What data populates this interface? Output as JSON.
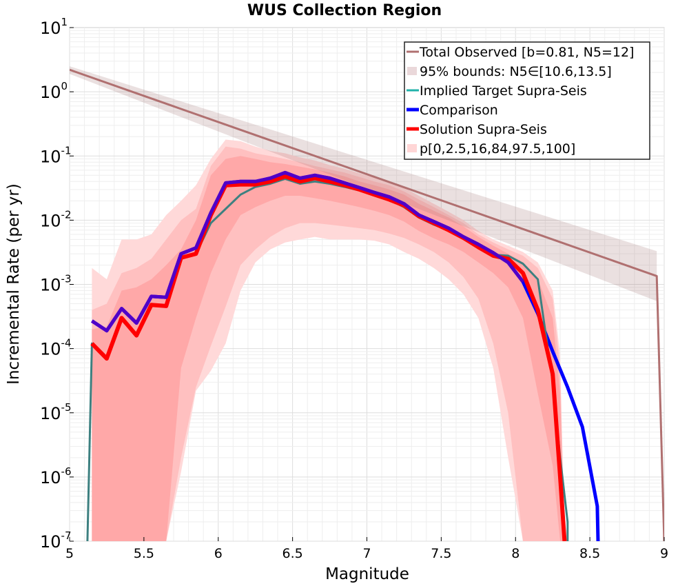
{
  "chart_data": {
    "type": "line",
    "title": "WUS Collection Region",
    "xlabel": "Magnitude",
    "ylabel": "Incremental Rate (per yr)",
    "xlim": [
      5,
      9
    ],
    "ylim": [
      1e-07,
      10
    ],
    "yscale": "log",
    "grid": true,
    "legend_position": "top-right",
    "x_ticks": [
      "5",
      "5.5",
      "6",
      "6.5",
      "7",
      "7.5",
      "8",
      "8.5",
      "9"
    ],
    "y_ticks": [
      {
        "base": "10",
        "exp": "-7"
      },
      {
        "base": "10",
        "exp": "-6"
      },
      {
        "base": "10",
        "exp": "-5"
      },
      {
        "base": "10",
        "exp": "-4"
      },
      {
        "base": "10",
        "exp": "-3"
      },
      {
        "base": "10",
        "exp": "-2"
      },
      {
        "base": "10",
        "exp": "-1"
      },
      {
        "base": "10",
        "exp": "0"
      },
      {
        "base": "10",
        "exp": "1"
      }
    ],
    "series": [
      {
        "name": "Total Observed [b=0.81, N5=12]",
        "color": "#b07070",
        "style": "line",
        "x": [
          5.0,
          8.95,
          8.95,
          9.0
        ],
        "y": [
          2.2,
          0.00135,
          0.00135,
          1e-07
        ]
      },
      {
        "name": "95% bounds: N5∈[10.6,13.5]",
        "color": "#a07070",
        "style": "band",
        "x": [
          5.0,
          8.95
        ],
        "lower": [
          1.9,
          0.00055
        ],
        "upper": [
          2.5,
          0.0033
        ]
      },
      {
        "name": "Implied Target Supra-Seis",
        "color": "#20b2aa",
        "style": "line",
        "x": [
          5.12,
          5.15,
          5.25,
          5.35,
          5.45,
          5.55,
          5.65,
          5.75,
          5.85,
          5.95,
          6.05,
          6.15,
          6.25,
          6.35,
          6.45,
          6.55,
          6.65,
          6.75,
          6.85,
          6.95,
          7.05,
          7.15,
          7.25,
          7.35,
          7.45,
          7.55,
          7.65,
          7.75,
          7.85,
          7.95,
          8.05,
          8.15,
          8.25,
          8.3,
          8.35,
          8.35
        ],
        "y": [
          1e-07,
          0.00012,
          7e-05,
          0.00028,
          0.00016,
          0.00047,
          0.00045,
          0.0025,
          0.003,
          0.009,
          0.015,
          0.025,
          0.033,
          0.037,
          0.044,
          0.037,
          0.04,
          0.037,
          0.033,
          0.029,
          0.025,
          0.021,
          0.016,
          0.011,
          0.0085,
          0.007,
          0.0052,
          0.0038,
          0.0029,
          0.0028,
          0.0021,
          0.0012,
          3e-05,
          2e-06,
          2e-07,
          1e-07
        ]
      },
      {
        "name": "Comparison",
        "color": "#0000ff",
        "style": "line",
        "x": [
          5.15,
          5.25,
          5.35,
          5.45,
          5.55,
          5.65,
          5.75,
          5.85,
          5.95,
          6.05,
          6.15,
          6.25,
          6.35,
          6.45,
          6.55,
          6.65,
          6.75,
          6.85,
          6.95,
          7.05,
          7.15,
          7.25,
          7.35,
          7.45,
          7.55,
          7.65,
          7.75,
          7.85,
          7.95,
          8.05,
          8.15,
          8.25,
          8.35,
          8.45,
          8.55,
          8.555
        ],
        "y": [
          0.00027,
          0.00019,
          0.00042,
          0.00025,
          0.00065,
          0.00063,
          0.003,
          0.0037,
          0.013,
          0.038,
          0.04,
          0.04,
          0.045,
          0.055,
          0.045,
          0.05,
          0.045,
          0.038,
          0.032,
          0.027,
          0.023,
          0.018,
          0.012,
          0.0095,
          0.0075,
          0.0055,
          0.0042,
          0.0031,
          0.0022,
          0.0011,
          0.00035,
          9e-05,
          2.5e-05,
          6e-06,
          3.5e-07,
          1e-07
        ]
      },
      {
        "name": "Solution Supra-Seis",
        "color": "#ff0000",
        "style": "line",
        "x": [
          5.15,
          5.25,
          5.35,
          5.45,
          5.55,
          5.65,
          5.75,
          5.85,
          5.95,
          6.05,
          6.15,
          6.25,
          6.35,
          6.45,
          6.55,
          6.65,
          6.75,
          6.85,
          6.95,
          7.05,
          7.15,
          7.25,
          7.35,
          7.45,
          7.55,
          7.65,
          7.75,
          7.85,
          7.95,
          8.05,
          8.15,
          8.25,
          8.3,
          8.33
        ],
        "y": [
          0.00012,
          7e-05,
          0.0003,
          0.00016,
          0.00048,
          0.00046,
          0.0026,
          0.003,
          0.012,
          0.035,
          0.036,
          0.036,
          0.04,
          0.048,
          0.04,
          0.045,
          0.04,
          0.035,
          0.03,
          0.025,
          0.021,
          0.017,
          0.0115,
          0.009,
          0.007,
          0.0053,
          0.0038,
          0.0028,
          0.0025,
          0.0015,
          0.0004,
          4e-05,
          1e-06,
          1e-07
        ]
      },
      {
        "name": "p[0,2.5,16,84,97.5,100]",
        "color": "#ff9999",
        "style": "percentile-bands",
        "x": [
          5.15,
          5.25,
          5.35,
          5.45,
          5.55,
          5.65,
          5.75,
          5.85,
          5.95,
          6.05,
          6.15,
          6.25,
          6.35,
          6.45,
          6.55,
          6.65,
          6.75,
          6.85,
          6.95,
          7.05,
          7.15,
          7.25,
          7.35,
          7.45,
          7.55,
          7.65,
          7.75,
          7.85,
          7.95,
          8.05,
          8.15,
          8.25,
          8.3,
          8.33
        ],
        "p0": [
          1e-07,
          1e-07,
          1e-07,
          1e-07,
          1e-07,
          1e-07,
          1.2e-06,
          2.2e-05,
          4.5e-05,
          0.00012,
          0.0008,
          0.0022,
          0.0035,
          0.0045,
          0.005,
          0.0055,
          0.005,
          0.005,
          0.005,
          0.0048,
          0.0042,
          0.0032,
          0.0025,
          0.0018,
          0.0012,
          0.0007,
          0.0003,
          5e-05,
          2e-06,
          1e-07,
          1e-07,
          1e-07,
          1e-07,
          1e-07
        ],
        "p2_5": [
          1e-07,
          1e-07,
          1e-07,
          1e-07,
          1e-07,
          1e-07,
          2e-06,
          2.5e-05,
          0.00011,
          0.00045,
          0.002,
          0.0035,
          0.0055,
          0.0075,
          0.009,
          0.009,
          0.0085,
          0.008,
          0.0075,
          0.007,
          0.0062,
          0.0053,
          0.0042,
          0.0032,
          0.0022,
          0.0013,
          0.0006,
          0.00012,
          1e-05,
          1e-07,
          1e-07,
          1e-07,
          1e-07,
          1e-07
        ],
        "p16": [
          1e-07,
          1e-07,
          1e-07,
          1e-07,
          1e-07,
          1e-07,
          5e-05,
          0.0003,
          0.0015,
          0.005,
          0.012,
          0.016,
          0.02,
          0.024,
          0.024,
          0.022,
          0.02,
          0.018,
          0.016,
          0.014,
          0.012,
          0.0095,
          0.0068,
          0.0052,
          0.0042,
          0.0032,
          0.0022,
          0.0015,
          0.0009,
          0.0003,
          2e-05,
          1.5e-06,
          1e-07,
          1e-07
        ],
        "p84": [
          0.0002,
          0.00022,
          0.0008,
          0.0009,
          0.0012,
          0.002,
          0.0035,
          0.01,
          0.05,
          0.09,
          0.1,
          0.09,
          0.08,
          0.075,
          0.068,
          0.062,
          0.055,
          0.048,
          0.04,
          0.035,
          0.03,
          0.025,
          0.018,
          0.014,
          0.011,
          0.008,
          0.0055,
          0.004,
          0.003,
          0.0022,
          0.0012,
          0.0003,
          2e-05,
          1e-07
        ],
        "p97_5": [
          0.0004,
          0.0005,
          0.0015,
          0.0018,
          0.0025,
          0.005,
          0.01,
          0.015,
          0.07,
          0.14,
          0.13,
          0.11,
          0.1,
          0.09,
          0.08,
          0.07,
          0.062,
          0.055,
          0.047,
          0.04,
          0.035,
          0.028,
          0.021,
          0.016,
          0.012,
          0.009,
          0.006,
          0.0045,
          0.0035,
          0.0028,
          0.0018,
          0.0006,
          5e-05,
          1e-07
        ],
        "p100": [
          0.0018,
          0.0012,
          0.005,
          0.005,
          0.006,
          0.012,
          0.02,
          0.035,
          0.09,
          0.18,
          0.17,
          0.14,
          0.12,
          0.11,
          0.095,
          0.085,
          0.072,
          0.063,
          0.054,
          0.046,
          0.04,
          0.032,
          0.024,
          0.018,
          0.0135,
          0.01,
          0.0068,
          0.005,
          0.004,
          0.0032,
          0.0022,
          0.0008,
          8e-05,
          1e-07
        ]
      }
    ]
  }
}
